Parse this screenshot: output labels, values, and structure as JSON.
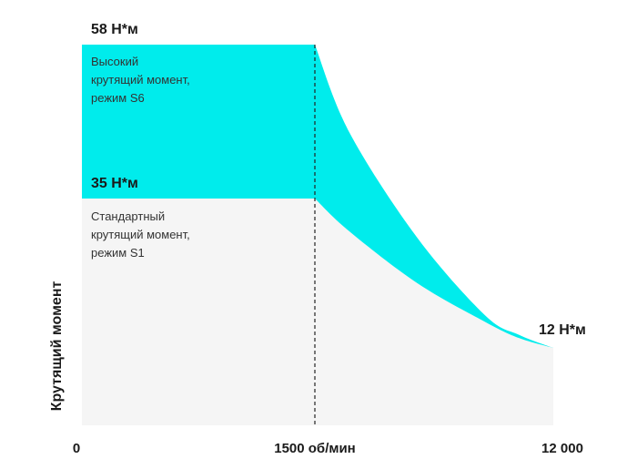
{
  "chart_data": {
    "type": "area",
    "ylabel": "Крутящий момент",
    "x_ticks": [
      "0",
      "1500 об/мин",
      "12 000"
    ],
    "x_tick_values": [
      0,
      1500,
      12000
    ],
    "xlim": [
      0,
      12000
    ],
    "ylim": [
      0,
      58
    ],
    "series": [
      {
        "name": "high",
        "label_lines": [
          "Высокий",
          "крутящий момент,",
          "режим S6"
        ],
        "color": "#00ECEC",
        "x": [
          0,
          1500,
          3000,
          6000,
          9000,
          10500,
          12000
        ],
        "y": [
          58,
          58,
          45,
          29,
          17,
          14,
          12
        ]
      },
      {
        "name": "standard",
        "label_lines": [
          "Стандартный",
          "крутящий момент,",
          "режим S1"
        ],
        "color": "#F5F5F5",
        "x": [
          0,
          1500,
          3000,
          6000,
          9000,
          10500,
          12000
        ],
        "y": [
          35,
          35,
          30,
          22,
          16,
          13.5,
          12
        ]
      }
    ],
    "annotations": [
      {
        "text": "58 Н*м",
        "x": 0,
        "y": 58
      },
      {
        "text": "35 Н*м",
        "x": 0,
        "y": 35
      },
      {
        "text": "12 Н*м",
        "x": 12000,
        "y": 12
      }
    ],
    "vline": {
      "x": 1500,
      "style": "dashed"
    }
  }
}
